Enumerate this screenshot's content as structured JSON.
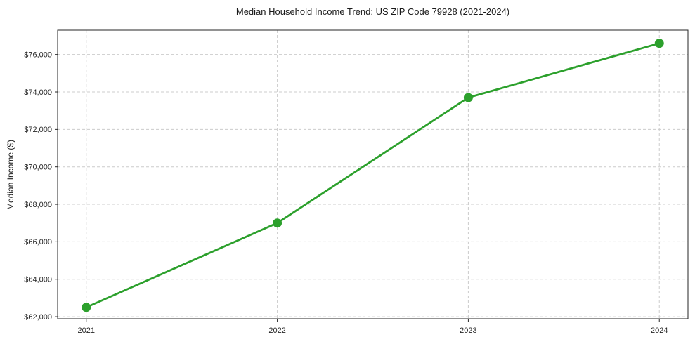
{
  "chart_data": {
    "type": "line",
    "title": "Median Household Income Trend: US ZIP Code 79928 (2021-2024)",
    "xlabel": "",
    "ylabel": "Median Income ($)",
    "x": [
      2021,
      2022,
      2023,
      2024
    ],
    "x_tick_labels": [
      "2021",
      "2022",
      "2023",
      "2024"
    ],
    "series": [
      {
        "name": "Median Household Income",
        "values": [
          62500,
          67000,
          73700,
          76600
        ]
      }
    ],
    "y_ticks": [
      62000,
      64000,
      66000,
      68000,
      70000,
      72000,
      74000,
      76000
    ],
    "y_tick_labels": [
      "$62,000",
      "$64,000",
      "$66,000",
      "$68,000",
      "$70,000",
      "$72,000",
      "$74,000",
      "$76,000"
    ],
    "xlim": [
      2020.85,
      2024.15
    ],
    "ylim": [
      61890,
      77300
    ],
    "grid": true,
    "legend_position": "none",
    "colors": {
      "line": "#2ca02c",
      "marker": "#2ca02c",
      "grid": "#cccccc",
      "spine": "#262626",
      "text": "#262626"
    }
  }
}
